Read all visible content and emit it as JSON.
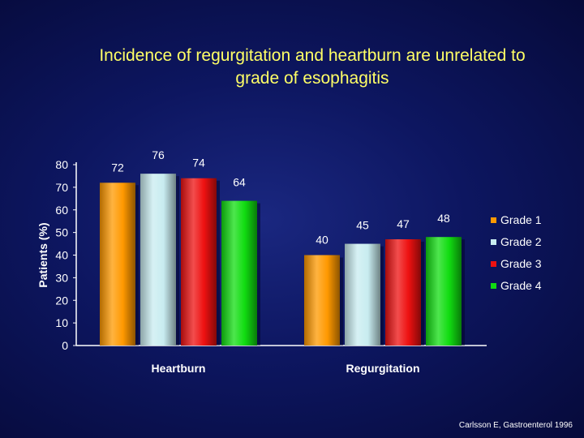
{
  "slide": {
    "title_line1": "Incidence of regurgitation and heartburn are unrelated to",
    "title_line2": "grade of esophagitis",
    "citation": "Carlsson E, Gastroenterol 1996"
  },
  "colors": {
    "title": "#ffff66",
    "background": "#0d1660",
    "text": "#ffffff"
  },
  "chart_data": {
    "type": "bar",
    "categories": [
      "Heartburn",
      "Regurgitation"
    ],
    "series": [
      {
        "name": "Grade 1",
        "values": [
          72,
          40
        ],
        "color": "#ff9900"
      },
      {
        "name": "Grade 2",
        "values": [
          76,
          45
        ],
        "color": "#c8ecf0"
      },
      {
        "name": "Grade 3",
        "values": [
          74,
          47
        ],
        "color": "#ee1111"
      },
      {
        "name": "Grade 4",
        "values": [
          64,
          48
        ],
        "color": "#11dd11"
      }
    ],
    "ylabel": "Patients (%)",
    "ylim": [
      0,
      80
    ],
    "yticks": [
      0,
      10,
      20,
      30,
      40,
      50,
      60,
      70,
      80
    ],
    "legend": "right",
    "grid": false
  }
}
